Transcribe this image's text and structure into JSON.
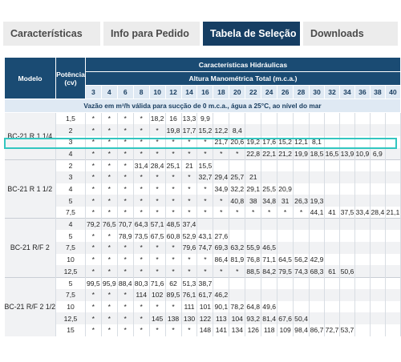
{
  "tabs": [
    {
      "label": "Características",
      "active": false
    },
    {
      "label": "Info para Pedido",
      "active": false
    },
    {
      "label": "Tabela de Seleção",
      "active": true
    },
    {
      "label": "Downloads",
      "active": false
    }
  ],
  "table": {
    "col_model": "Modelo",
    "col_power": "Potência (cv)",
    "char_header": "Características Hidráulicas",
    "height_header": "Altura Manométrica Total (m.c.a.)",
    "flow_note": "Vazão em m³/h válida para sucção de 0 m.c.a., água a 25°C, ao nível do mar",
    "heights": [
      "3",
      "4",
      "6",
      "8",
      "10",
      "12",
      "14",
      "16",
      "18",
      "20",
      "22",
      "24",
      "26",
      "28",
      "30",
      "32",
      "34",
      "36",
      "38",
      "40"
    ],
    "groups": [
      {
        "model": "BC-21 R 1 1/4",
        "rows": [
          {
            "power": "1,5",
            "values": [
              "*",
              "*",
              "*",
              "*",
              "18,2",
              "16",
              "13,3",
              "9,9",
              "",
              "",
              "",
              "",
              "",
              "",
              "",
              "",
              "",
              "",
              "",
              ""
            ]
          },
          {
            "power": "2",
            "values": [
              "*",
              "*",
              "*",
              "*",
              "*",
              "19,8",
              "17,7",
              "15,2",
              "12,2",
              "8,4",
              "",
              "",
              "",
              "",
              "",
              "",
              "",
              "",
              "",
              ""
            ]
          },
          {
            "power": "3",
            "values": [
              "*",
              "*",
              "*",
              "*",
              "*",
              "*",
              "*",
              "*",
              "21,7",
              "20,6",
              "19,2",
              "17,6",
              "15,2",
              "12,1",
              "8,1",
              "",
              "",
              "",
              "",
              ""
            ]
          },
          {
            "power": "4",
            "values": [
              "*",
              "*",
              "*",
              "*",
              "*",
              "*",
              "*",
              "*",
              "*",
              "*",
              "22,8",
              "22,1",
              "21,2",
              "19,9",
              "18,5",
              "16,5",
              "13,9",
              "10,9",
              "6,9",
              ""
            ]
          }
        ]
      },
      {
        "model": "BC-21 R 1 1/2",
        "rows": [
          {
            "power": "2",
            "values": [
              "*",
              "*",
              "*",
              "31,4",
              "28,4",
              "25,1",
              "21",
              "15,5",
              "",
              "",
              "",
              "",
              "",
              "",
              "",
              "",
              "",
              "",
              "",
              ""
            ]
          },
          {
            "power": "3",
            "values": [
              "*",
              "*",
              "*",
              "*",
              "*",
              "*",
              "*",
              "32,7",
              "29,4",
              "25,7",
              "21",
              "",
              "",
              "",
              "",
              "",
              "",
              "",
              "",
              ""
            ]
          },
          {
            "power": "4",
            "values": [
              "*",
              "*",
              "*",
              "*",
              "*",
              "*",
              "*",
              "*",
              "34,9",
              "32,2",
              "29,1",
              "25,5",
              "20,9",
              "",
              "",
              "",
              "",
              "",
              "",
              ""
            ]
          },
          {
            "power": "5",
            "values": [
              "*",
              "*",
              "*",
              "*",
              "*",
              "*",
              "*",
              "*",
              "*",
              "40,8",
              "38",
              "34,8",
              "31",
              "26,3",
              "19,3",
              "",
              "",
              "",
              "",
              ""
            ]
          },
          {
            "power": "7,5",
            "values": [
              "*",
              "*",
              "*",
              "*",
              "*",
              "*",
              "*",
              "*",
              "*",
              "*",
              "*",
              "*",
              "*",
              "*",
              "44,1",
              "41",
              "37,5",
              "33,4",
              "28,4",
              "21,1"
            ]
          }
        ]
      },
      {
        "model": "BC-21 R/F 2",
        "rows": [
          {
            "power": "4",
            "values": [
              "79,2",
              "76,5",
              "70,7",
              "64,3",
              "57,1",
              "48,5",
              "37,4",
              "",
              "",
              "",
              "",
              "",
              "",
              "",
              "",
              "",
              "",
              "",
              "",
              ""
            ]
          },
          {
            "power": "5",
            "values": [
              "*",
              "*",
              "78,9",
              "73,5",
              "67,5",
              "60,8",
              "52,9",
              "43,1",
              "27,6",
              "",
              "",
              "",
              "",
              "",
              "",
              "",
              "",
              "",
              "",
              ""
            ]
          },
          {
            "power": "7,5",
            "values": [
              "*",
              "*",
              "*",
              "*",
              "*",
              "*",
              "79,6",
              "74,7",
              "69,3",
              "63,2",
              "55,9",
              "46,5",
              "",
              "",
              "",
              "",
              "",
              "",
              "",
              ""
            ]
          },
          {
            "power": "10",
            "values": [
              "*",
              "*",
              "*",
              "*",
              "*",
              "*",
              "*",
              "*",
              "86,4",
              "81,9",
              "76,8",
              "71,1",
              "64,5",
              "56,2",
              "42,9",
              "",
              "",
              "",
              "",
              ""
            ]
          },
          {
            "power": "12,5",
            "values": [
              "*",
              "*",
              "*",
              "*",
              "*",
              "*",
              "*",
              "*",
              "*",
              "*",
              "88,5",
              "84,2",
              "79,5",
              "74,3",
              "68,3",
              "61",
              "50,6",
              "",
              "",
              ""
            ]
          }
        ]
      },
      {
        "model": "BC-21 R/F 2 1/2",
        "rows": [
          {
            "power": "5",
            "values": [
              "99,5",
              "95,9",
              "88,4",
              "80,3",
              "71,6",
              "62",
              "51,3",
              "38,7",
              "",
              "",
              "",
              "",
              "",
              "",
              "",
              "",
              "",
              "",
              "",
              ""
            ]
          },
          {
            "power": "7,5",
            "values": [
              "*",
              "*",
              "*",
              "114",
              "102",
              "89,5",
              "76,1",
              "61,7",
              "46,2",
              "",
              "",
              "",
              "",
              "",
              "",
              "",
              "",
              "",
              "",
              ""
            ]
          },
          {
            "power": "10",
            "values": [
              "*",
              "*",
              "*",
              "*",
              "*",
              "*",
              "111",
              "101",
              "90,1",
              "78,2",
              "64,8",
              "49,6",
              "",
              "",
              "",
              "",
              "",
              "",
              "",
              ""
            ]
          },
          {
            "power": "12,5",
            "values": [
              "*",
              "*",
              "*",
              "*",
              "145",
              "138",
              "130",
              "122",
              "113",
              "104",
              "93,2",
              "81,4",
              "67,6",
              "50,4",
              "",
              "",
              "",
              "",
              "",
              ""
            ]
          },
          {
            "power": "15",
            "values": [
              "*",
              "*",
              "*",
              "*",
              "*",
              "*",
              "*",
              "148",
              "141",
              "134",
              "126",
              "118",
              "109",
              "98,4",
              "86,7",
              "72,7",
              "53,7",
              "",
              "",
              ""
            ]
          }
        ]
      }
    ]
  }
}
